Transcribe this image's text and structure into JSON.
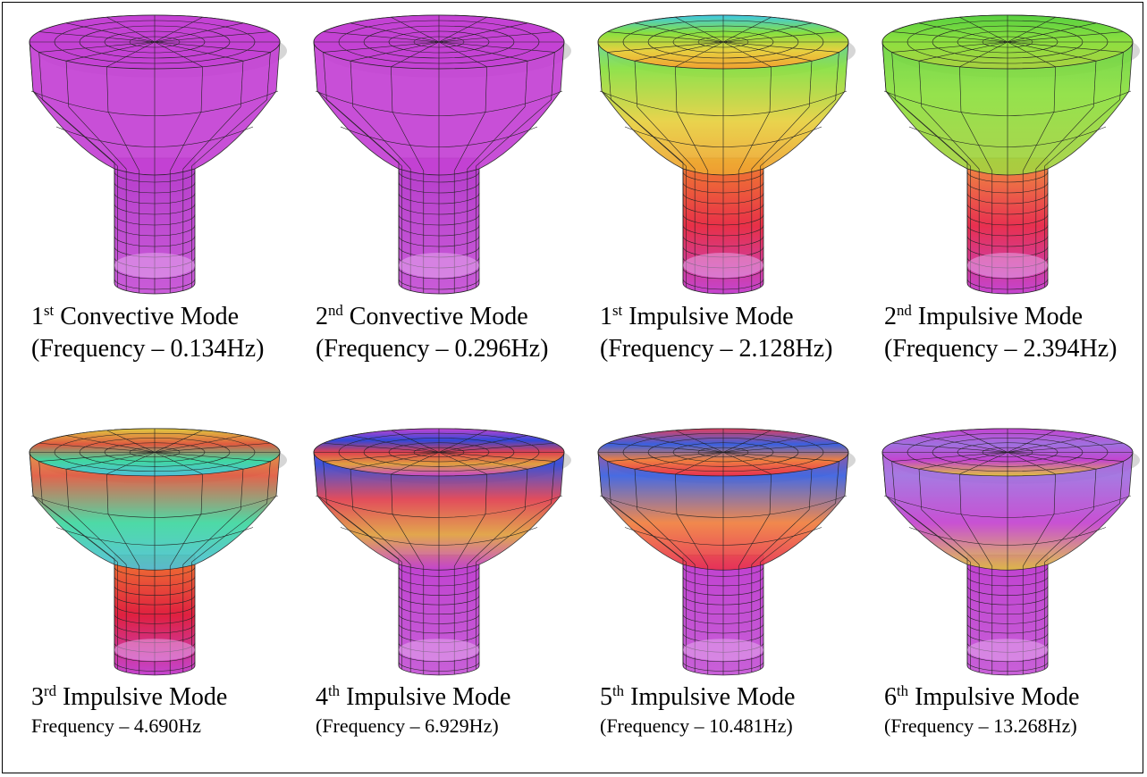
{
  "panels": [
    {
      "ordinal": "1",
      "suffix": "st",
      "mode": "Convective Mode",
      "frequency": "(Frequency – 0.134Hz)"
    },
    {
      "ordinal": "2",
      "suffix": "nd",
      "mode": "Convective Mode",
      "frequency": "(Frequency – 0.296Hz)"
    },
    {
      "ordinal": "1",
      "suffix": "st",
      "mode": "Impulsive Mode",
      "frequency": "(Frequency – 2.128Hz)"
    },
    {
      "ordinal": "2",
      "suffix": "nd",
      "mode": "Impulsive Mode",
      "frequency": "(Frequency – 2.394Hz)"
    },
    {
      "ordinal": "3",
      "suffix": "rd",
      "mode": "Impulsive Mode",
      "frequency": "Frequency – 4.690Hz"
    },
    {
      "ordinal": "4",
      "suffix": "th",
      "mode": "Impulsive Mode",
      "frequency": "(Frequency – 6.929Hz)"
    },
    {
      "ordinal": "5",
      "suffix": "th",
      "mode": "Impulsive Mode",
      "frequency": "(Frequency – 10.481Hz)"
    },
    {
      "ordinal": "6",
      "suffix": "th",
      "mode": "Impulsive Mode",
      "frequency": "(Frequency – 13.268Hz)"
    }
  ]
}
